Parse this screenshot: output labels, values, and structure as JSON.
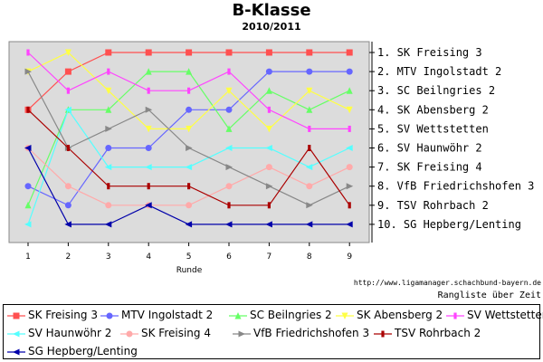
{
  "header": {
    "title": "B-Klasse",
    "subtitle": "2010/2011"
  },
  "footer": {
    "credit": "http://www.ligamanager.schachbund-bayern.de",
    "note": "Rangliste über Zeit"
  },
  "chart_data": {
    "type": "line",
    "title": "B-Klasse",
    "subtitle": "2010/2011",
    "xlabel": "Runde",
    "ylabel": "",
    "x": [
      1,
      2,
      3,
      4,
      5,
      6,
      7,
      8,
      9
    ],
    "ylim": [
      1,
      10
    ],
    "y_inverted": true,
    "grid": false,
    "legend_position": "bottom",
    "final_ranking": [
      "1. SK Freising 3",
      "2. MTV Ingolstadt 2",
      "3. SC Beilngries 2",
      "4. SK Abensberg 2",
      "5. SV Wettstetten",
      "6. SV Haunwöhr 2",
      "7. SK Freising 4",
      "8. VfB Friedrichshofen 3",
      "9. TSV Rohrbach 2",
      "10. SG Hepberg/Lenting"
    ],
    "series": [
      {
        "name": "SK Freising 3",
        "color": "#ff5050",
        "marker": "square",
        "values": [
          4,
          2,
          1,
          1,
          1,
          1,
          1,
          1,
          1
        ]
      },
      {
        "name": "MTV Ingolstadt 2",
        "color": "#6666ff",
        "marker": "circle",
        "values": [
          8,
          9,
          6,
          6,
          4,
          4,
          2,
          2,
          2
        ]
      },
      {
        "name": "SC Beilngries 2",
        "color": "#66ff66",
        "marker": "triangle-up",
        "values": [
          9,
          4,
          4,
          2,
          2,
          5,
          3,
          4,
          3
        ]
      },
      {
        "name": "SK Abensberg 2",
        "color": "#ffff44",
        "marker": "triangle-down",
        "values": [
          2,
          1,
          3,
          5,
          5,
          3,
          5,
          3,
          4
        ]
      },
      {
        "name": "SV Wettstetten",
        "color": "#ff44ff",
        "marker": "bar",
        "values": [
          1,
          3,
          2,
          3,
          3,
          2,
          4,
          5,
          5
        ]
      },
      {
        "name": "SV Haunwöhr 2",
        "color": "#55ffff",
        "marker": "triangle-left",
        "values": [
          10,
          4,
          7,
          7,
          7,
          6,
          6,
          7,
          6
        ]
      },
      {
        "name": "SK Freising 4",
        "color": "#ffaaaa",
        "marker": "circle",
        "values": [
          6,
          8,
          9,
          9,
          9,
          8,
          7,
          8,
          7
        ]
      },
      {
        "name": "VfB Friedrichshofen 3",
        "color": "#888888",
        "marker": "triangle-right",
        "values": [
          2,
          6,
          5,
          4,
          6,
          7,
          8,
          9,
          8
        ]
      },
      {
        "name": "TSV Rohrbach 2",
        "color": "#aa0000",
        "marker": "bar",
        "values": [
          4,
          6,
          8,
          8,
          8,
          9,
          9,
          6,
          9
        ]
      },
      {
        "name": "SG Hepberg/Lenting",
        "color": "#0000aa",
        "marker": "triangle-left",
        "values": [
          6,
          10,
          10,
          9,
          10,
          10,
          10,
          10,
          10
        ]
      }
    ]
  }
}
